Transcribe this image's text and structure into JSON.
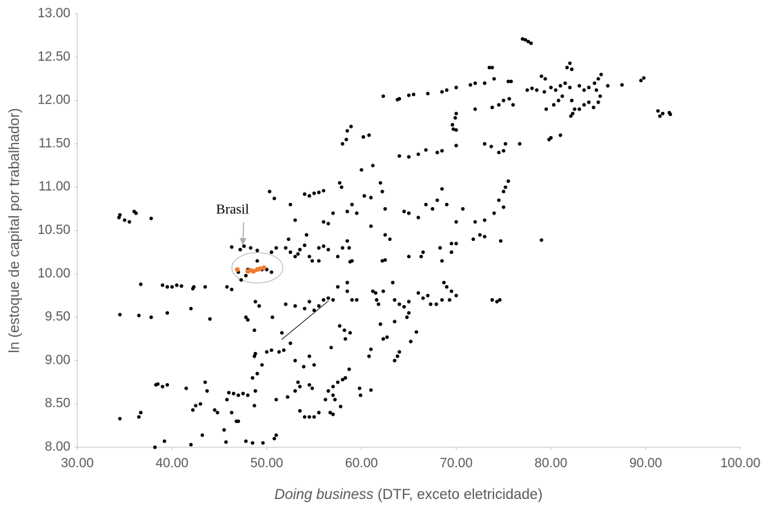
{
  "chart_data": {
    "type": "scatter",
    "y_label": "ln (estoque de capital por trabalhador)",
    "x_label_parts": [
      "Doing business",
      " (DTF, exceto eletricidade)"
    ],
    "annotation": "Brasil",
    "xlim": [
      30,
      100
    ],
    "ylim": [
      8,
      13
    ],
    "xticks": [
      {
        "value": 30,
        "label": "30.00"
      },
      {
        "value": 40,
        "label": "40.00"
      },
      {
        "value": 50,
        "label": "50.00"
      },
      {
        "value": 60,
        "label": "60.00"
      },
      {
        "value": 70,
        "label": "70.00"
      },
      {
        "value": 80,
        "label": "80.00"
      },
      {
        "value": 90,
        "label": "90.00"
      },
      {
        "value": 100,
        "label": "100.00"
      }
    ],
    "yticks": [
      {
        "value": 8,
        "label": "8.00"
      },
      {
        "value": 8.5,
        "label": "8.50"
      },
      {
        "value": 9,
        "label": "9.00"
      },
      {
        "value": 9.5,
        "label": "9.50"
      },
      {
        "value": 10,
        "label": "10.00"
      },
      {
        "value": 10.5,
        "label": "10.50"
      },
      {
        "value": 11,
        "label": "11.00"
      },
      {
        "value": 11.5,
        "label": "11.50"
      },
      {
        "value": 12,
        "label": "12.00"
      },
      {
        "value": 12.5,
        "label": "12.50"
      },
      {
        "value": 13,
        "label": "13.00"
      }
    ],
    "grid": false,
    "series": [
      {
        "color": "#000000",
        "x": [
          77,
          77.3,
          77.6,
          77.9,
          73.5,
          73.8,
          82,
          81.7,
          82.2,
          89.8,
          89.5,
          85.3,
          85,
          79,
          79.4,
          84.6,
          86,
          87.5,
          73,
          74,
          75.5,
          75.8,
          71.5,
          72,
          70,
          69,
          68.5,
          67,
          65,
          65.5,
          64,
          63.8,
          62.3,
          77.5,
          78,
          78.5,
          79.3,
          80,
          80.5,
          81,
          81.5,
          82,
          83,
          83.5,
          84,
          84.8,
          85.2,
          82.2,
          82.3,
          82.5,
          82.1,
          83,
          83.5,
          84,
          84.5,
          85,
          80.3,
          79.5,
          80.8,
          81.2,
          75,
          74.5,
          73.8,
          75.6,
          76,
          72,
          91.3,
          91.5,
          91.8,
          92.5,
          92.6,
          70,
          69.9,
          69.6,
          69.7,
          70,
          79.8,
          80,
          81,
          75.2,
          76.7,
          73,
          73.7,
          74.5,
          75,
          70,
          68.5,
          68,
          66.8,
          65,
          66,
          64,
          58,
          58.4,
          58.9,
          58.5,
          60.2,
          60.8,
          61.2,
          60,
          57.7,
          57.9,
          56,
          55.5,
          55,
          54.5,
          54,
          50.3,
          50.8,
          62,
          62.2,
          60.3,
          61,
          59,
          59.5,
          58.5,
          62.5,
          64.5,
          65,
          66,
          66.8,
          67.5,
          68,
          68.5,
          69,
          70,
          70.7,
          72,
          73,
          74,
          74.5,
          75,
          75.2,
          75.5,
          75,
          72.5,
          73,
          71.8,
          74.7,
          79,
          70,
          69.5,
          68.3,
          66.5,
          66.3,
          68.5,
          69.5,
          63,
          62.5,
          61,
          62.5,
          62.2,
          65,
          58.5,
          58.7,
          58,
          59,
          58.8,
          57.5,
          55.5,
          56,
          56.5,
          54,
          53.5,
          52,
          52.5,
          51,
          50.5,
          54.5,
          54.8,
          55.5,
          53,
          53.3,
          56,
          56.5,
          53,
          57,
          52.5,
          52.3,
          54.2,
          46.3,
          47.2,
          47.6,
          48.3,
          49,
          47,
          47.8,
          47.3,
          48,
          49,
          49.5,
          50.5,
          50,
          34.5,
          34.4,
          35,
          35.5,
          36,
          36.2,
          37.8,
          36.7,
          39,
          39.5,
          40,
          40.5,
          41,
          42.3,
          42.2,
          43.5,
          45.8,
          46.3,
          34.5,
          36.5,
          37.8,
          39.5,
          42,
          44,
          47.8,
          48,
          48.8,
          49.2,
          50.6,
          52,
          53,
          54,
          54.5,
          55,
          55.5,
          56,
          56.5,
          57,
          52.5,
          51.6,
          48.7,
          48.8,
          48.7,
          50,
          50.5,
          51.3,
          51.8,
          53,
          54.5,
          55,
          56.8,
          57.7,
          58.2,
          58.8,
          58.3,
          57.5,
          58.5,
          59,
          59.5,
          61.2,
          61.5,
          61.6,
          61.8,
          62.3,
          63.3,
          63.5,
          64,
          64.5,
          65,
          66.5,
          67,
          67.3,
          67.9,
          68.5,
          68.7,
          69,
          69.5,
          69.3,
          70,
          73.8,
          74.3,
          74.6,
          66,
          62,
          62.3,
          62.7,
          63.5,
          64.8,
          65,
          64,
          63.5,
          63.8,
          65.2,
          65.8,
          61,
          60.8,
          58.5,
          56.2,
          56.5,
          57,
          57.5,
          58,
          58.3,
          59.8,
          59.9,
          61,
          58.7,
          57,
          57.2,
          57.8,
          57,
          56.7,
          55.5,
          55,
          54.5,
          54,
          53.5,
          53,
          53.5,
          54.5,
          54.8,
          53.3,
          51,
          52.2,
          53.9,
          49,
          49.5,
          48.5,
          48,
          47.5,
          46.5,
          47,
          46,
          48.8,
          45.8,
          44.8,
          46.3,
          46.8,
          47,
          45.5,
          44.5,
          43.5,
          43.7,
          42.5,
          43,
          42.2,
          41.5,
          39,
          39.5,
          38.5,
          38.3,
          36.7,
          36.5,
          34.5,
          39.2,
          38.2,
          42,
          43.2,
          45.7,
          47.8,
          48.5,
          49.6,
          50.8,
          51,
          48.7
        ],
        "values": [
          12.71,
          12.7,
          12.68,
          12.66,
          12.38,
          12.38,
          12.43,
          12.38,
          12.36,
          12.26,
          12.23,
          12.3,
          12.25,
          12.28,
          12.25,
          12.2,
          12.17,
          12.18,
          12.2,
          12.25,
          12.22,
          12.22,
          12.18,
          12.2,
          12.15,
          12.12,
          12.1,
          12.08,
          12.06,
          12.07,
          12.02,
          12.01,
          12.05,
          12.12,
          12.14,
          12.12,
          12.1,
          12.15,
          12.12,
          12.17,
          12.2,
          12.15,
          12.17,
          12.12,
          12.15,
          12.12,
          12.05,
          12.0,
          11.85,
          11.9,
          11.82,
          11.9,
          11.95,
          11.98,
          11.92,
          11.98,
          11.95,
          11.9,
          12.0,
          12.05,
          12.0,
          11.95,
          11.92,
          12.02,
          11.95,
          11.9,
          11.88,
          11.82,
          11.85,
          11.86,
          11.84,
          11.85,
          11.8,
          11.72,
          11.67,
          11.66,
          11.55,
          11.57,
          11.6,
          11.5,
          11.5,
          11.5,
          11.47,
          11.4,
          11.42,
          11.48,
          11.42,
          11.4,
          11.43,
          11.35,
          11.38,
          11.36,
          11.5,
          11.55,
          11.7,
          11.65,
          11.58,
          11.6,
          11.25,
          11.2,
          11.05,
          11.0,
          10.96,
          10.94,
          10.93,
          10.9,
          10.92,
          10.95,
          10.87,
          11.05,
          10.95,
          10.9,
          10.88,
          10.8,
          10.7,
          10.72,
          10.75,
          10.72,
          10.7,
          10.65,
          10.8,
          10.75,
          10.85,
          10.98,
          10.8,
          10.6,
          10.75,
          10.6,
          10.62,
          10.7,
          10.85,
          10.95,
          11.0,
          11.07,
          10.77,
          10.45,
          10.43,
          10.4,
          10.38,
          10.39,
          10.35,
          10.35,
          10.3,
          10.25,
          10.2,
          10.15,
          10.25,
          10.4,
          10.45,
          10.55,
          10.16,
          10.15,
          10.2,
          10.38,
          10.3,
          10.3,
          10.15,
          10.14,
          10.2,
          10.3,
          10.32,
          10.28,
          10.33,
          10.28,
          10.3,
          10.25,
          10.3,
          10.25,
          10.2,
          10.15,
          10.15,
          10.2,
          10.23,
          10.6,
          10.58,
          10.62,
          10.7,
          10.8,
          10.4,
          10.45,
          10.31,
          10.28,
          10.32,
          10.3,
          10.27,
          10.02,
          9.98,
          9.93,
          10.05,
          10.15,
          10.05,
          10.02,
          10.05,
          10.68,
          10.65,
          10.62,
          10.6,
          10.72,
          10.7,
          10.64,
          9.88,
          9.87,
          9.85,
          9.85,
          9.87,
          9.86,
          9.85,
          9.83,
          9.85,
          9.85,
          9.82,
          9.53,
          9.52,
          9.5,
          9.55,
          9.6,
          9.48,
          9.5,
          9.47,
          9.68,
          9.63,
          9.5,
          9.65,
          9.63,
          9.6,
          9.68,
          9.58,
          9.63,
          9.7,
          9.72,
          9.7,
          9.2,
          9.32,
          9.35,
          9.08,
          9.05,
          9.1,
          9.12,
          9.1,
          9.12,
          9.0,
          9.05,
          8.95,
          9.15,
          9.4,
          9.35,
          9.32,
          9.25,
          9.85,
          9.8,
          9.7,
          9.7,
          9.8,
          9.78,
          9.7,
          9.65,
          9.8,
          9.9,
          9.7,
          9.65,
          9.62,
          9.68,
          9.72,
          9.75,
          9.65,
          9.65,
          9.7,
          9.9,
          9.85,
          9.8,
          9.7,
          9.75,
          9.7,
          9.68,
          9.7,
          9.78,
          9.42,
          9.25,
          9.27,
          9.45,
          9.5,
          9.55,
          9.1,
          9.0,
          9.05,
          9.22,
          9.33,
          9.13,
          9.05,
          9.9,
          8.55,
          8.65,
          8.7,
          8.75,
          8.78,
          8.8,
          8.68,
          8.6,
          8.66,
          8.9,
          8.6,
          8.55,
          8.47,
          8.38,
          8.4,
          8.4,
          8.35,
          8.35,
          8.35,
          8.42,
          8.65,
          8.7,
          8.72,
          8.68,
          8.75,
          8.55,
          8.58,
          8.93,
          8.85,
          8.95,
          8.8,
          8.6,
          8.62,
          8.62,
          8.6,
          8.63,
          8.65,
          8.55,
          8.4,
          8.4,
          8.3,
          8.3,
          8.2,
          8.43,
          8.75,
          8.65,
          8.48,
          8.5,
          8.43,
          8.68,
          8.7,
          8.72,
          8.73,
          8.72,
          8.4,
          8.35,
          8.33,
          8.07,
          8.0,
          8.03,
          8.14,
          8.06,
          8.07,
          8.05,
          8.05,
          8.1,
          8.14,
          8.48
        ]
      },
      {
        "color": "#ed7d31",
        "x": [
          46.9,
          48,
          48.3,
          48.6,
          49,
          49.3,
          49.7
        ],
        "values": [
          10.05,
          10.03,
          10.04,
          10.03,
          10.05,
          10.06,
          10.07
        ]
      }
    ]
  }
}
